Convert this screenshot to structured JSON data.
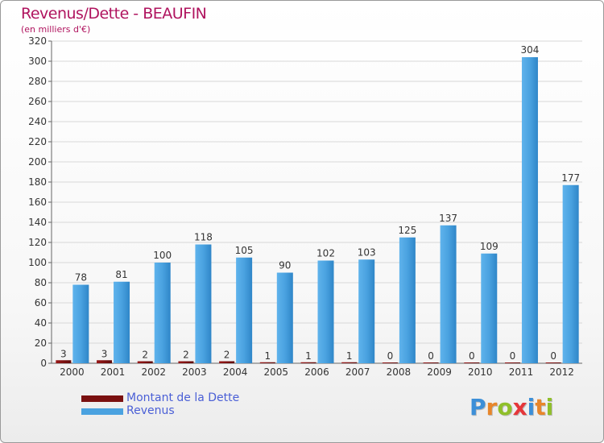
{
  "header": {
    "title": "Revenus/Dette - BEAUFIN",
    "subtitle": "(en milliers d'€)"
  },
  "chart_data": {
    "type": "bar",
    "categories": [
      "2000",
      "2001",
      "2002",
      "2003",
      "2004",
      "2005",
      "2006",
      "2007",
      "2008",
      "2009",
      "2010",
      "2011",
      "2012"
    ],
    "series": [
      {
        "name": "Montant de la Dette",
        "color": "#7a1010",
        "values": [
          3,
          3,
          2,
          2,
          2,
          1,
          1,
          1,
          0,
          0,
          0,
          0,
          0
        ]
      },
      {
        "name": "Revenus",
        "color": "#4aa2e0",
        "values": [
          78,
          81,
          100,
          118,
          105,
          90,
          102,
          103,
          125,
          137,
          109,
          304,
          177
        ]
      }
    ],
    "ylim": [
      0,
      320
    ],
    "yticks": [
      0,
      20,
      40,
      60,
      80,
      100,
      120,
      140,
      160,
      180,
      200,
      220,
      240,
      260,
      280,
      300,
      320
    ],
    "grid": true,
    "legend_position": "bottom-left"
  },
  "logo": {
    "letters": [
      {
        "char": "P",
        "color": "#3c8fd8"
      },
      {
        "char": "r",
        "color": "#e8862a"
      },
      {
        "char": "o",
        "color": "#8fbf2a"
      },
      {
        "char": "x",
        "color": "#e5363a"
      },
      {
        "char": "i",
        "color": "#3c8fd8"
      },
      {
        "char": "t",
        "color": "#e8862a"
      },
      {
        "char": "i",
        "color": "#8fbf2a"
      }
    ]
  }
}
